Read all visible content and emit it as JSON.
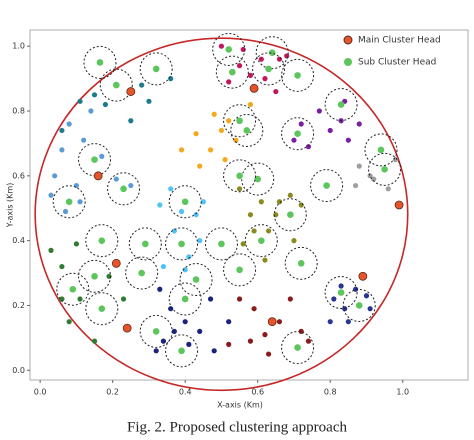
{
  "chart_data": {
    "type": "scatter",
    "xlabel": "X-axis (Km)",
    "ylabel": "Y-axis (Km)",
    "caption": "Fig. 2.   Proposed clustering approach",
    "xlim": [
      -0.028,
      1.18
    ],
    "ylim": [
      -0.03,
      1.05
    ],
    "xticks": [
      {
        "value": 0,
        "label": "0.0"
      },
      0.2,
      0.4,
      0.6,
      0.8,
      {
        "value": 1,
        "label": "1.0"
      }
    ],
    "yticks": [
      {
        "value": 0,
        "label": "0.0"
      },
      0.2,
      0.4,
      0.6,
      0.8,
      {
        "value": 1,
        "label": "1.0"
      }
    ],
    "legend": "upper right",
    "series": [
      {
        "color": "#c2185b",
        "x": [
          0.5,
          0.56,
          0.61,
          0.66,
          0.58,
          0.62,
          0.55,
          0.65,
          0.52,
          0.68
        ],
        "values": [
          1.0,
          0.99,
          0.96,
          0.96,
          0.91,
          0.9,
          0.94,
          0.86,
          0.89,
          0.97
        ]
      },
      {
        "color": "#7b1fa2",
        "x": [
          0.72,
          0.77,
          0.83,
          0.85,
          0.74,
          0.84,
          0.8,
          0.88,
          0.7
        ],
        "values": [
          0.76,
          0.8,
          0.77,
          0.71,
          0.69,
          0.83,
          0.74,
          0.76,
          0.71
        ]
      },
      {
        "color": "#9e9e9e",
        "x": [
          0.88,
          0.91,
          0.98,
          0.96,
          0.92,
          0.87
        ],
        "values": [
          0.63,
          0.6,
          0.65,
          0.56,
          0.59,
          0.57
        ]
      },
      {
        "color": "#f4a81d",
        "x": [
          0.43,
          0.47,
          0.5,
          0.44,
          0.51,
          0.54,
          0.39,
          0.48,
          0.58,
          0.52
        ],
        "values": [
          0.73,
          0.68,
          0.74,
          0.63,
          0.65,
          0.71,
          0.68,
          0.79,
          0.82,
          0.77
        ]
      },
      {
        "color": "#8a8a1e",
        "x": [
          0.55,
          0.61,
          0.58,
          0.66,
          0.63,
          0.7,
          0.62,
          0.56,
          0.69,
          0.65,
          0.72,
          0.59
        ],
        "values": [
          0.56,
          0.52,
          0.48,
          0.52,
          0.43,
          0.4,
          0.34,
          0.39,
          0.54,
          0.48,
          0.51,
          0.43
        ]
      },
      {
        "color": "#4fc3f7",
        "x": [
          0.36,
          0.39,
          0.33,
          0.43,
          0.37,
          0.41,
          0.44,
          0.34,
          0.45,
          0.4
        ],
        "values": [
          0.56,
          0.49,
          0.51,
          0.48,
          0.43,
          0.35,
          0.4,
          0.32,
          0.52,
          0.31
        ]
      },
      {
        "color": "#5b9bd5",
        "x": [
          0.06,
          0.04,
          0.1,
          0.07,
          0.11,
          0.12,
          0.17,
          0.21,
          0.25,
          0.03,
          0.14,
          0.08
        ],
        "values": [
          0.68,
          0.6,
          0.57,
          0.49,
          0.52,
          0.71,
          0.66,
          0.59,
          0.57,
          0.54,
          0.8,
          0.76
        ]
      },
      {
        "color": "#1e7b8c",
        "x": [
          0.11,
          0.15,
          0.18,
          0.25,
          0.3,
          0.06,
          0.36,
          0.28
        ],
        "values": [
          0.83,
          0.85,
          0.82,
          0.77,
          0.83,
          0.74,
          0.9,
          0.88
        ]
      },
      {
        "color": "#2e7d32",
        "x": [
          0.06,
          0.1,
          0.11,
          0.08,
          0.19,
          0.23,
          0.03,
          0.15,
          0.06
        ],
        "values": [
          0.32,
          0.39,
          0.22,
          0.15,
          0.29,
          0.22,
          0.37,
          0.09,
          0.22
        ]
      },
      {
        "color": "#1a237e",
        "x": [
          0.33,
          0.36,
          0.4,
          0.44,
          0.47,
          0.34,
          0.41,
          0.48,
          0.52,
          0.37,
          0.32
        ],
        "values": [
          0.25,
          0.19,
          0.15,
          0.12,
          0.22,
          0.09,
          0.08,
          0.06,
          0.15,
          0.12,
          0.06
        ]
      },
      {
        "color": "#8b1a1a",
        "x": [
          0.55,
          0.59,
          0.62,
          0.66,
          0.58,
          0.52,
          0.69,
          0.72,
          0.63,
          0.74
        ],
        "values": [
          0.22,
          0.19,
          0.11,
          0.15,
          0.09,
          0.08,
          0.22,
          0.12,
          0.05,
          0.09
        ]
      },
      {
        "color": "#283593",
        "x": [
          0.83,
          0.87,
          0.84,
          0.9,
          0.81,
          0.85,
          0.91,
          0.8
        ],
        "values": [
          0.26,
          0.25,
          0.19,
          0.23,
          0.22,
          0.15,
          0.19,
          0.15
        ]
      },
      {
        "name": "Sub Cluster Head",
        "color": "#5cc65c",
        "x": [
          0.165,
          0.21,
          0.32,
          0.52,
          0.53,
          0.64,
          0.63,
          0.71,
          0.55,
          0.57,
          0.71,
          0.83,
          0.94,
          0.95,
          0.79,
          0.6,
          0.55,
          0.69,
          0.61,
          0.72,
          0.55,
          0.4,
          0.39,
          0.29,
          0.17,
          0.15,
          0.09,
          0.17,
          0.28,
          0.43,
          0.4,
          0.32,
          0.39,
          0.71,
          0.88,
          0.83,
          0.08,
          0.15,
          0.23,
          0.5
        ],
        "values": [
          0.95,
          0.88,
          0.93,
          0.99,
          0.92,
          0.98,
          0.93,
          0.91,
          0.77,
          0.74,
          0.73,
          0.82,
          0.68,
          0.62,
          0.57,
          0.59,
          0.6,
          0.48,
          0.4,
          0.33,
          0.31,
          0.52,
          0.39,
          0.39,
          0.4,
          0.29,
          0.25,
          0.19,
          0.3,
          0.28,
          0.22,
          0.12,
          0.06,
          0.07,
          0.2,
          0.24,
          0.52,
          0.65,
          0.56,
          0.39
        ]
      },
      {
        "name": "Main Cluster Head",
        "color": "#e8542a",
        "x": [
          0.25,
          0.59,
          0.16,
          0.99,
          0.21,
          0.89,
          0.24,
          0.64
        ],
        "values": [
          0.86,
          0.87,
          0.6,
          0.51,
          0.33,
          0.29,
          0.13,
          0.15
        ]
      }
    ]
  }
}
